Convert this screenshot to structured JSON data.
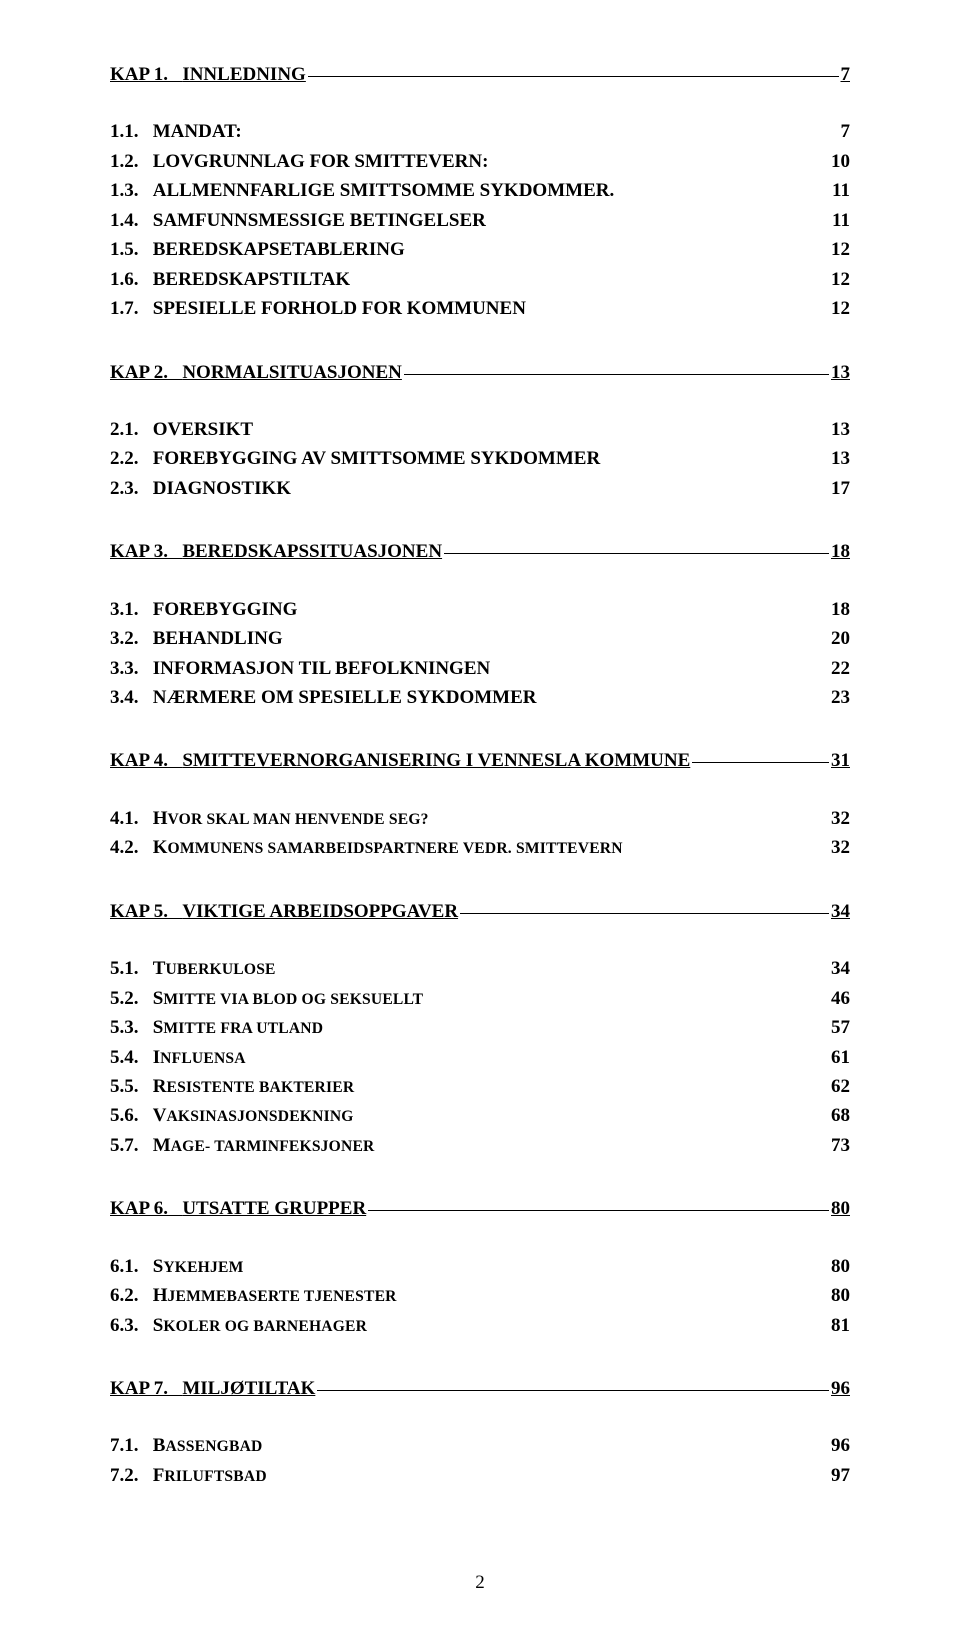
{
  "page_number": "2",
  "text_color": "#000000",
  "background_color": "#ffffff",
  "sections": [
    {
      "chapter": {
        "label": "KAP 1.",
        "title": "INNLEDNING",
        "page": "7"
      },
      "items": [
        {
          "label": "1.1.",
          "title": "MANDAT:",
          "page": "7",
          "smallcaps": false
        },
        {
          "label": "1.2.",
          "title": "LOVGRUNNLAG FOR SMITTEVERN:",
          "page": "10",
          "smallcaps": false
        },
        {
          "label": "1.3.",
          "title": "ALLMENNFARLIGE SMITTSOMME SYKDOMMER.",
          "page": "11",
          "smallcaps": false
        },
        {
          "label": "1.4.",
          "title": "SAMFUNNSMESSIGE BETINGELSER",
          "page": "11",
          "smallcaps": false
        },
        {
          "label": "1.5.",
          "title": "BEREDSKAPSETABLERING",
          "page": "12",
          "smallcaps": false
        },
        {
          "label": "1.6.",
          "title": "BEREDSKAPSTILTAK",
          "page": "12",
          "smallcaps": false
        },
        {
          "label": "1.7.",
          "title": "SPESIELLE FORHOLD FOR KOMMUNEN",
          "page": "12",
          "smallcaps": false
        }
      ]
    },
    {
      "chapter": {
        "label": "KAP 2.",
        "title": "NORMALSITUASJONEN",
        "page": "13"
      },
      "items": [
        {
          "label": "2.1.",
          "title": "OVERSIKT",
          "page": "13",
          "smallcaps": false
        },
        {
          "label": "2.2.",
          "title": "FOREBYGGING AV SMITTSOMME SYKDOMMER",
          "page": "13",
          "smallcaps": false
        },
        {
          "label": "2.3.",
          "title": "DIAGNOSTIKK",
          "page": "17",
          "smallcaps": false
        }
      ]
    },
    {
      "chapter": {
        "label": "KAP 3.",
        "title": "BEREDSKAPSSITUASJONEN",
        "page": "18"
      },
      "items": [
        {
          "label": "3.1.",
          "title": "FOREBYGGING",
          "page": "18",
          "smallcaps": false
        },
        {
          "label": "3.2.",
          "title": "BEHANDLING",
          "page": "20",
          "smallcaps": false
        },
        {
          "label": "3.3.",
          "title": "INFORMASJON TIL BEFOLKNINGEN",
          "page": "22",
          "smallcaps": false
        },
        {
          "label": "3.4.",
          "title": "NÆRMERE OM SPESIELLE SYKDOMMER",
          "page": "23",
          "smallcaps": false
        }
      ]
    },
    {
      "chapter": {
        "label": "KAP 4.",
        "title": "SMITTEVERNORGANISERING I VENNESLA KOMMUNE",
        "page": "31"
      },
      "items": [
        {
          "label": "4.1.",
          "first": "H",
          "rest": "vor skal man henvende seg?",
          "page": "32",
          "smallcaps": true
        },
        {
          "label": "4.2.",
          "first": "K",
          "rest": "ommunens samarbeidspartnere vedr. smittevern",
          "page": "32",
          "smallcaps": true
        }
      ]
    },
    {
      "chapter": {
        "label": "KAP 5.",
        "title": "VIKTIGE ARBEIDSOPPGAVER",
        "page": "34"
      },
      "items": [
        {
          "label": "5.1.",
          "first": "T",
          "rest": "uberkulose",
          "page": "34",
          "smallcaps": true
        },
        {
          "label": "5.2.",
          "first": "S",
          "rest": "mitte via blod og seksuellt",
          "page": "46",
          "smallcaps": true
        },
        {
          "label": "5.3.",
          "first": "S",
          "rest": "mitte fra utland",
          "page": "57",
          "smallcaps": true
        },
        {
          "label": "5.4.",
          "first": "I",
          "rest": "nfluensa",
          "page": "61",
          "smallcaps": true
        },
        {
          "label": "5.5.",
          "first": "R",
          "rest": "esistente bakterier",
          "page": "62",
          "smallcaps": true
        },
        {
          "label": "5.6.",
          "first": "V",
          "rest": "aksinasjonsdekning",
          "page": "68",
          "smallcaps": true
        },
        {
          "label": "5.7.",
          "first": "M",
          "rest": "age- tarminfeksjoner",
          "page": "73",
          "smallcaps": true
        }
      ]
    },
    {
      "chapter": {
        "label": "KAP 6.",
        "title": "UTSATTE GRUPPER",
        "page": "80"
      },
      "items": [
        {
          "label": "6.1.",
          "first": "S",
          "rest": "ykehjem",
          "page": "80",
          "smallcaps": true
        },
        {
          "label": "6.2.",
          "first": "H",
          "rest": "jemmebaserte tjenester",
          "page": "80",
          "smallcaps": true
        },
        {
          "label": "6.3.",
          "first": "S",
          "rest": "koler og barnehager",
          "page": "81",
          "smallcaps": true
        }
      ]
    },
    {
      "chapter": {
        "label": "KAP 7.",
        "title": "MILJØTILTAK",
        "page": "96"
      },
      "items": [
        {
          "label": "7.1.",
          "first": "B",
          "rest": "assengbad",
          "page": "96",
          "smallcaps": true
        },
        {
          "label": "7.2.",
          "first": "F",
          "rest": "riluftsbad",
          "page": "97",
          "smallcaps": true
        }
      ]
    }
  ]
}
